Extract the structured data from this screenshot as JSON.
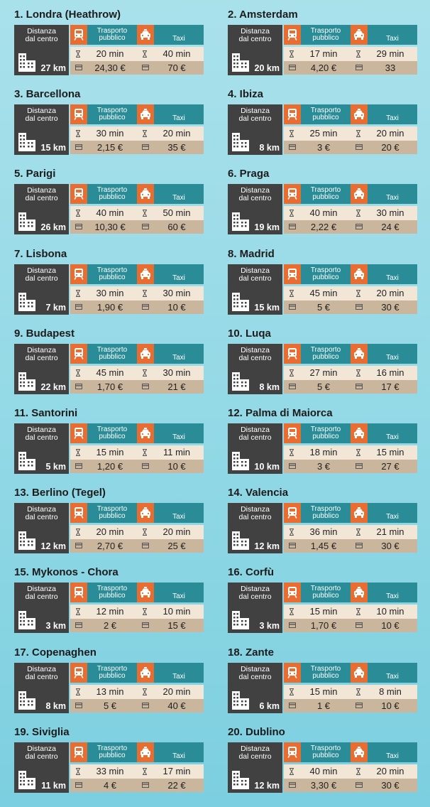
{
  "labels": {
    "distance_line1": "Distanza",
    "distance_line2": "dal centro",
    "public_line1": "Trasporto",
    "public_line2": "pubblico",
    "taxi": "Taxi"
  },
  "colors": {
    "accent": "#e96d31",
    "header_teal": "#2a8c97",
    "dark_panel": "#414141",
    "time_row": "#f2e6d6",
    "price_row": "#cab69d"
  },
  "icons": {
    "building": "building-icon",
    "public_transport": "train-icon",
    "taxi": "taxi-icon",
    "time": "hourglass-icon",
    "price": "credit-card-icon"
  },
  "cities": [
    {
      "title": "1. Londra (Heathrow)",
      "distance": "27 km",
      "public_time": "20 min",
      "public_price": "24,30 €",
      "taxi_time": "40 min",
      "taxi_price": "70 €"
    },
    {
      "title": "2. Amsterdam",
      "distance": "20 km",
      "public_time": "17 min",
      "public_price": "4,20 €",
      "taxi_time": "29 min",
      "taxi_price": "33"
    },
    {
      "title": "3. Barcellona",
      "distance": "15 km",
      "public_time": "30 min",
      "public_price": "2,15 €",
      "taxi_time": "20 min",
      "taxi_price": "35 €"
    },
    {
      "title": "4. Ibiza",
      "distance": "8 km",
      "public_time": "25 min",
      "public_price": "3 €",
      "taxi_time": "20 min",
      "taxi_price": "20 €"
    },
    {
      "title": "5. Parigi",
      "distance": "26 km",
      "public_time": "40 min",
      "public_price": "10,30 €",
      "taxi_time": "50 min",
      "taxi_price": "60 €"
    },
    {
      "title": "6. Praga",
      "distance": "19 km",
      "public_time": "40 min",
      "public_price": "2,22 €",
      "taxi_time": "30 min",
      "taxi_price": "24 €"
    },
    {
      "title": "7. Lisbona",
      "distance": "7 km",
      "public_time": "30 min",
      "public_price": "1,90 €",
      "taxi_time": "30 min",
      "taxi_price": "10 €"
    },
    {
      "title": "8. Madrid",
      "distance": "15 km",
      "public_time": "45 min",
      "public_price": "5 €",
      "taxi_time": "20 min",
      "taxi_price": "30 €"
    },
    {
      "title": "9. Budapest",
      "distance": "22 km",
      "public_time": "45 min",
      "public_price": "1,70 €",
      "taxi_time": "30 min",
      "taxi_price": "21 €"
    },
    {
      "title": "10. Luqa",
      "distance": "8 km",
      "public_time": "27 min",
      "public_price": "5 €",
      "taxi_time": "16 min",
      "taxi_price": "17 €"
    },
    {
      "title": "11. Santorini",
      "distance": "5 km",
      "public_time": "15 min",
      "public_price": "1,20 €",
      "taxi_time": "11 min",
      "taxi_price": "10 €"
    },
    {
      "title": "12. Palma di Maiorca",
      "distance": "10 km",
      "public_time": "18 min",
      "public_price": "3 €",
      "taxi_time": "15 min",
      "taxi_price": "27 €"
    },
    {
      "title": "13. Berlino (Tegel)",
      "distance": "12 km",
      "public_time": "20 min",
      "public_price": "2,70 €",
      "taxi_time": "20 min",
      "taxi_price": "25 €"
    },
    {
      "title": "14. Valencia",
      "distance": "12 km",
      "public_time": "36 min",
      "public_price": "1,45 €",
      "taxi_time": "21 min",
      "taxi_price": "30 €"
    },
    {
      "title": "15. Mykonos - Chora",
      "distance": "3 km",
      "public_time": "12 min",
      "public_price": "2 €",
      "taxi_time": "10 min",
      "taxi_price": "15 €"
    },
    {
      "title": "16. Corfù",
      "distance": "3 km",
      "public_time": "15 min",
      "public_price": "1,70 €",
      "taxi_time": "10 min",
      "taxi_price": "10 €"
    },
    {
      "title": "17. Copenaghen",
      "distance": "8 km",
      "public_time": "13 min",
      "public_price": "5 €",
      "taxi_time": "20 min",
      "taxi_price": "40 €"
    },
    {
      "title": "18. Zante",
      "distance": "6 km",
      "public_time": "15 min",
      "public_price": "1 €",
      "taxi_time": "8 min",
      "taxi_price": "10 €"
    },
    {
      "title": "19. Siviglia",
      "distance": "11 km",
      "public_time": "33 min",
      "public_price": "4 €",
      "taxi_time": "17 min",
      "taxi_price": "22 €"
    },
    {
      "title": "20. Dublino",
      "distance": "12 km",
      "public_time": "40 min",
      "public_price": "3,30 €",
      "taxi_time": "20 min",
      "taxi_price": "30 €"
    }
  ]
}
